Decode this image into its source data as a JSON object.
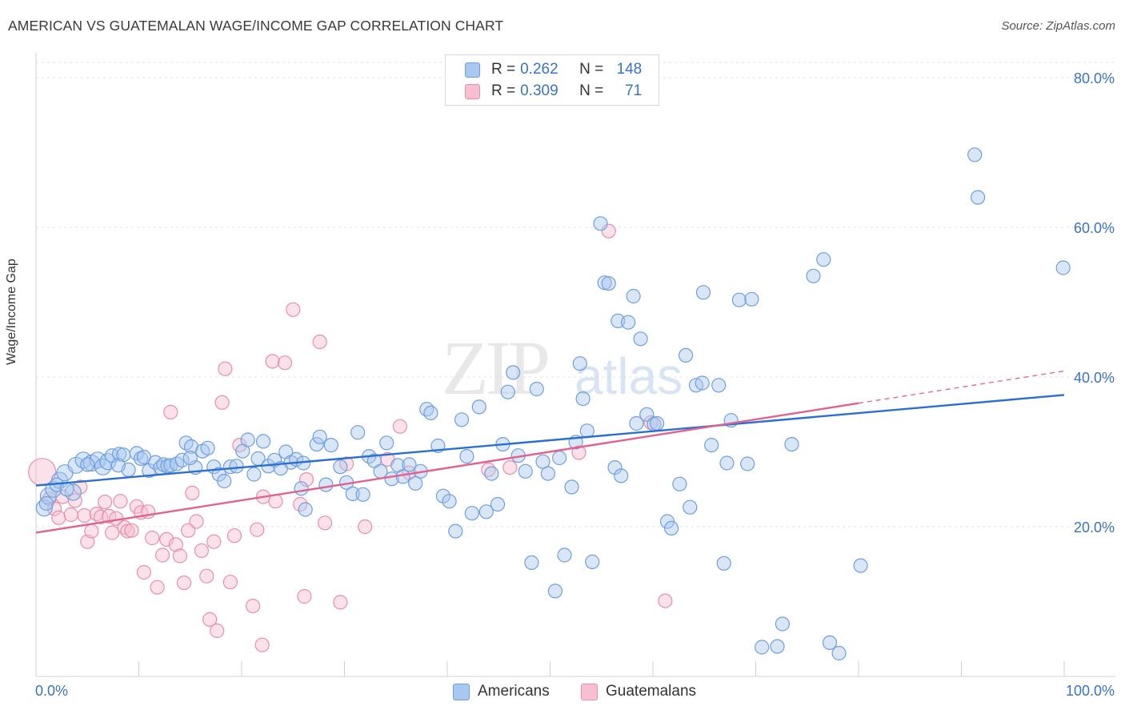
{
  "title": "AMERICAN VS GUATEMALAN WAGE/INCOME GAP CORRELATION CHART",
  "source": "Source: ZipAtlas.com",
  "watermark": {
    "zip": "ZIP",
    "atlas": "atlas"
  },
  "legend": {
    "rows": [
      {
        "r_label": "R =",
        "r_value": "0.262",
        "n_label": "N =",
        "n_value": "148"
      },
      {
        "r_label": "R =",
        "r_value": "0.309",
        "n_label": "N =",
        "n_value": "71"
      }
    ]
  },
  "bottom_legend": {
    "americans": "Americans",
    "guatemalans": "Guatemalans"
  },
  "colors": {
    "americans_fill": "#a9c8f0",
    "americans_stroke": "#6f9fdc",
    "americans_line": "#2b6fd0",
    "guatemalans_fill": "#f7bfd0",
    "guatemalans_stroke": "#e98eaa",
    "guatemalans_line": "#e0628f",
    "tick_label": "#3a72c4"
  },
  "chart_data": {
    "type": "scatter",
    "title": "AMERICAN VS GUATEMALAN WAGE/INCOME GAP CORRELATION CHART",
    "xlabel": "",
    "ylabel": "Wage/Income Gap",
    "xlim": [
      0,
      100
    ],
    "ylim": [
      0,
      80
    ],
    "x_tick_labels": [
      "0.0%",
      "100.0%"
    ],
    "y_ticks": [
      20,
      40,
      60,
      80
    ],
    "y_tick_labels": [
      "20.0%",
      "40.0%",
      "60.0%",
      "80.0%"
    ],
    "grid": true,
    "legend_position": "top-center",
    "series": [
      {
        "name": "Americans",
        "R": 0.262,
        "N": 148,
        "trend": {
          "x": [
            0,
            100
          ],
          "y": [
            25.5,
            37.6
          ]
        },
        "points": [
          [
            0.8,
            22.5
          ],
          [
            1.2,
            24.1
          ],
          [
            1.7,
            25.0
          ],
          [
            2.3,
            26.2
          ],
          [
            2.8,
            27.2
          ],
          [
            3.6,
            24.6
          ],
          [
            3.9,
            28.2
          ],
          [
            4.6,
            28.9
          ],
          [
            5.4,
            28.5
          ],
          [
            6.0,
            28.9
          ],
          [
            6.5,
            28.0
          ],
          [
            7.0,
            28.7
          ],
          [
            7.4,
            29.5
          ],
          [
            8.1,
            29.7
          ],
          [
            8.5,
            29.6
          ],
          [
            9.0,
            27.6
          ],
          [
            9.8,
            29.8
          ],
          [
            10.2,
            29.1
          ],
          [
            10.5,
            29.3
          ],
          [
            11.0,
            27.5
          ],
          [
            11.6,
            28.6
          ],
          [
            12.1,
            27.9
          ],
          [
            12.4,
            28.3
          ],
          [
            12.8,
            28.1
          ],
          [
            13.1,
            28.2
          ],
          [
            13.7,
            28.4
          ],
          [
            14.2,
            28.9
          ],
          [
            14.6,
            31.2
          ],
          [
            15.1,
            30.7
          ],
          [
            15.5,
            27.9
          ],
          [
            16.2,
            30.1
          ],
          [
            16.7,
            30.5
          ],
          [
            17.3,
            28.0
          ],
          [
            17.8,
            27.0
          ],
          [
            18.3,
            26.1
          ],
          [
            18.9,
            28.0
          ],
          [
            19.5,
            28.1
          ],
          [
            20.1,
            30.1
          ],
          [
            20.6,
            31.6
          ],
          [
            21.2,
            27.0
          ],
          [
            21.6,
            29.1
          ],
          [
            22.1,
            31.4
          ],
          [
            22.6,
            28.1
          ],
          [
            23.2,
            28.9
          ],
          [
            23.8,
            27.8
          ],
          [
            24.3,
            30.0
          ],
          [
            24.8,
            28.6
          ],
          [
            25.3,
            29.0
          ],
          [
            25.8,
            25.1
          ],
          [
            26.2,
            22.3
          ],
          [
            27.3,
            31.0
          ],
          [
            27.6,
            32.0
          ],
          [
            28.2,
            25.6
          ],
          [
            28.7,
            30.9
          ],
          [
            29.6,
            28.0
          ],
          [
            30.2,
            25.9
          ],
          [
            30.8,
            24.4
          ],
          [
            31.3,
            32.6
          ],
          [
            31.8,
            24.3
          ],
          [
            32.4,
            29.4
          ],
          [
            32.9,
            28.8
          ],
          [
            33.5,
            27.4
          ],
          [
            34.1,
            31.2
          ],
          [
            34.6,
            26.4
          ],
          [
            35.2,
            28.2
          ],
          [
            35.7,
            26.7
          ],
          [
            36.3,
            28.3
          ],
          [
            36.9,
            25.8
          ],
          [
            37.4,
            27.4
          ],
          [
            38.0,
            35.7
          ],
          [
            38.4,
            35.2
          ],
          [
            39.1,
            30.8
          ],
          [
            39.6,
            24.1
          ],
          [
            40.2,
            23.4
          ],
          [
            40.8,
            19.4
          ],
          [
            41.4,
            34.3
          ],
          [
            41.9,
            29.4
          ],
          [
            42.4,
            21.8
          ],
          [
            43.1,
            36.0
          ],
          [
            43.8,
            22.0
          ],
          [
            44.3,
            27.1
          ],
          [
            44.9,
            23.0
          ],
          [
            45.4,
            31.0
          ],
          [
            45.9,
            38.0
          ],
          [
            46.4,
            40.6
          ],
          [
            46.9,
            29.5
          ],
          [
            47.6,
            27.4
          ],
          [
            48.2,
            15.2
          ],
          [
            48.7,
            38.4
          ],
          [
            49.3,
            28.7
          ],
          [
            49.8,
            27.1
          ],
          [
            50.5,
            11.4
          ],
          [
            50.9,
            29.2
          ],
          [
            51.4,
            16.2
          ],
          [
            52.1,
            25.3
          ],
          [
            52.5,
            31.3
          ],
          [
            52.9,
            41.8
          ],
          [
            53.2,
            37.1
          ],
          [
            53.6,
            32.8
          ],
          [
            54.1,
            15.3
          ],
          [
            54.9,
            60.5
          ],
          [
            55.3,
            52.6
          ],
          [
            55.7,
            52.5
          ],
          [
            56.3,
            27.9
          ],
          [
            56.6,
            47.5
          ],
          [
            56.9,
            26.8
          ],
          [
            57.6,
            47.3
          ],
          [
            58.1,
            50.8
          ],
          [
            58.4,
            33.8
          ],
          [
            58.8,
            45.1
          ],
          [
            59.4,
            35.0
          ],
          [
            60.1,
            33.7
          ],
          [
            60.4,
            33.8
          ],
          [
            61.4,
            20.7
          ],
          [
            61.8,
            19.8
          ],
          [
            62.6,
            25.7
          ],
          [
            63.2,
            42.9
          ],
          [
            63.6,
            22.6
          ],
          [
            64.2,
            38.9
          ],
          [
            64.8,
            39.2
          ],
          [
            64.9,
            51.3
          ],
          [
            65.7,
            30.9
          ],
          [
            66.4,
            38.9
          ],
          [
            66.9,
            15.1
          ],
          [
            67.2,
            28.5
          ],
          [
            67.6,
            34.2
          ],
          [
            68.4,
            50.3
          ],
          [
            69.2,
            28.4
          ],
          [
            69.6,
            50.4
          ],
          [
            70.6,
            3.9
          ],
          [
            72.1,
            4.0
          ],
          [
            72.6,
            7.0
          ],
          [
            73.5,
            31.0
          ],
          [
            75.6,
            53.5
          ],
          [
            76.6,
            55.7
          ],
          [
            77.2,
            4.5
          ],
          [
            78.1,
            3.1
          ],
          [
            80.2,
            14.8
          ],
          [
            91.3,
            69.7
          ],
          [
            91.6,
            64.0
          ],
          [
            99.9,
            54.6
          ],
          [
            1.0,
            23.1
          ],
          [
            2.0,
            25.6
          ],
          [
            3.0,
            25.0
          ],
          [
            5.0,
            28.3
          ],
          [
            8.0,
            28.2
          ],
          [
            15.0,
            29.2
          ],
          [
            26.0,
            28.5
          ]
        ]
      },
      {
        "name": "Guatemalans",
        "R": 0.309,
        "N": 71,
        "trend": {
          "x": [
            0,
            80
          ],
          "y": [
            19.2,
            36.5
          ]
        },
        "trend_dashed": {
          "x": [
            80,
            100
          ],
          "y": [
            36.5,
            40.8
          ]
        },
        "points": [
          [
            0.6,
            27.3
          ],
          [
            1.3,
            23.7
          ],
          [
            1.8,
            22.4
          ],
          [
            2.2,
            21.2
          ],
          [
            2.6,
            24.0
          ],
          [
            3.4,
            21.6
          ],
          [
            3.8,
            23.5
          ],
          [
            4.3,
            25.3
          ],
          [
            4.7,
            21.5
          ],
          [
            5.0,
            18.0
          ],
          [
            5.4,
            19.4
          ],
          [
            5.9,
            21.7
          ],
          [
            6.3,
            21.3
          ],
          [
            6.7,
            23.3
          ],
          [
            7.1,
            21.4
          ],
          [
            7.4,
            19.2
          ],
          [
            7.8,
            21.1
          ],
          [
            8.2,
            23.4
          ],
          [
            8.6,
            19.9
          ],
          [
            8.9,
            19.4
          ],
          [
            9.3,
            19.5
          ],
          [
            9.8,
            22.7
          ],
          [
            10.2,
            21.9
          ],
          [
            10.5,
            13.9
          ],
          [
            10.9,
            22.0
          ],
          [
            11.3,
            18.5
          ],
          [
            11.8,
            11.9
          ],
          [
            12.3,
            16.2
          ],
          [
            12.7,
            18.3
          ],
          [
            13.1,
            35.3
          ],
          [
            13.6,
            17.6
          ],
          [
            14.0,
            16.1
          ],
          [
            14.4,
            12.5
          ],
          [
            14.8,
            19.5
          ],
          [
            15.2,
            24.5
          ],
          [
            15.6,
            20.7
          ],
          [
            16.1,
            16.8
          ],
          [
            16.6,
            13.4
          ],
          [
            16.9,
            7.6
          ],
          [
            17.3,
            18.0
          ],
          [
            17.6,
            6.1
          ],
          [
            18.1,
            36.6
          ],
          [
            18.4,
            41.1
          ],
          [
            18.9,
            12.6
          ],
          [
            19.3,
            18.8
          ],
          [
            19.8,
            30.9
          ],
          [
            21.1,
            9.4
          ],
          [
            21.5,
            19.6
          ],
          [
            22.0,
            4.2
          ],
          [
            22.1,
            24.0
          ],
          [
            23.0,
            42.1
          ],
          [
            23.3,
            23.4
          ],
          [
            24.2,
            41.9
          ],
          [
            25.0,
            49.0
          ],
          [
            25.7,
            23.0
          ],
          [
            26.1,
            10.7
          ],
          [
            26.3,
            26.3
          ],
          [
            27.6,
            44.7
          ],
          [
            28.1,
            20.5
          ],
          [
            29.6,
            9.9
          ],
          [
            30.2,
            28.4
          ],
          [
            32.0,
            20.0
          ],
          [
            34.2,
            29.0
          ],
          [
            35.4,
            33.4
          ],
          [
            36.3,
            27.2
          ],
          [
            44.0,
            27.6
          ],
          [
            46.1,
            27.9
          ],
          [
            52.8,
            29.9
          ],
          [
            55.7,
            59.5
          ],
          [
            59.8,
            33.9
          ],
          [
            61.2,
            10.1
          ]
        ]
      }
    ]
  }
}
